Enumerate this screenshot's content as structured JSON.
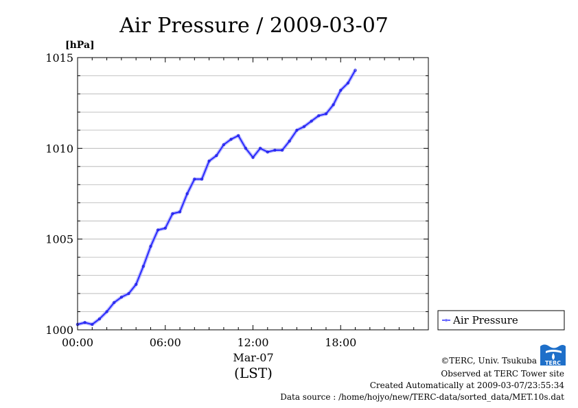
{
  "chart_data": {
    "type": "line",
    "title": "Air Pressure / 2009-03-07",
    "ylabel": "[hPa]",
    "xlabel": "(LST)",
    "x_date_label": "Mar-07",
    "ylim": [
      1000,
      1015
    ],
    "xlim": [
      "00:00",
      "24:00"
    ],
    "y_ticks": [
      "1000",
      "1005",
      "1010",
      "1015"
    ],
    "x_ticks": [
      "00:00",
      "06:00",
      "12:00",
      "18:00"
    ],
    "grid": true,
    "legend_position": "right",
    "series": [
      {
        "name": "Air Pressure",
        "color": "#2b2bff",
        "x": [
          "00:00",
          "00:30",
          "01:00",
          "01:30",
          "02:00",
          "02:30",
          "03:00",
          "03:30",
          "04:00",
          "04:30",
          "05:00",
          "05:30",
          "06:00",
          "06:30",
          "07:00",
          "07:30",
          "08:00",
          "08:30",
          "09:00",
          "09:30",
          "10:00",
          "10:30",
          "11:00",
          "11:30",
          "12:00",
          "12:30",
          "13:00",
          "13:30",
          "14:00",
          "14:30",
          "15:00",
          "15:30",
          "16:00",
          "16:30",
          "17:00",
          "17:30",
          "18:00",
          "18:30",
          "19:00"
        ],
        "y": [
          1000.3,
          1000.4,
          1000.3,
          1000.6,
          1001.0,
          1001.5,
          1001.8,
          1002.0,
          1002.5,
          1003.5,
          1004.6,
          1005.5,
          1005.6,
          1006.4,
          1006.5,
          1007.5,
          1008.3,
          1008.3,
          1009.3,
          1009.6,
          1010.2,
          1010.5,
          1010.7,
          1010.0,
          1009.5,
          1010.0,
          1009.8,
          1009.9,
          1009.9,
          1010.4,
          1011.0,
          1011.2,
          1011.5,
          1011.8,
          1011.9,
          1012.4,
          1013.2,
          1013.6,
          1014.3
        ]
      }
    ]
  },
  "footer": {
    "copyright": "©TERC, Univ. Tsukuba",
    "site": "Observed at TERC Tower site",
    "created": "Created Automatically at 2009-03-07/23:55:34",
    "source": "Data source : /home/hojyo/new/TERC-data/sorted_data/MET.10s.dat"
  },
  "logo": {
    "text": "TERC",
    "color": "#1e6fc9"
  }
}
